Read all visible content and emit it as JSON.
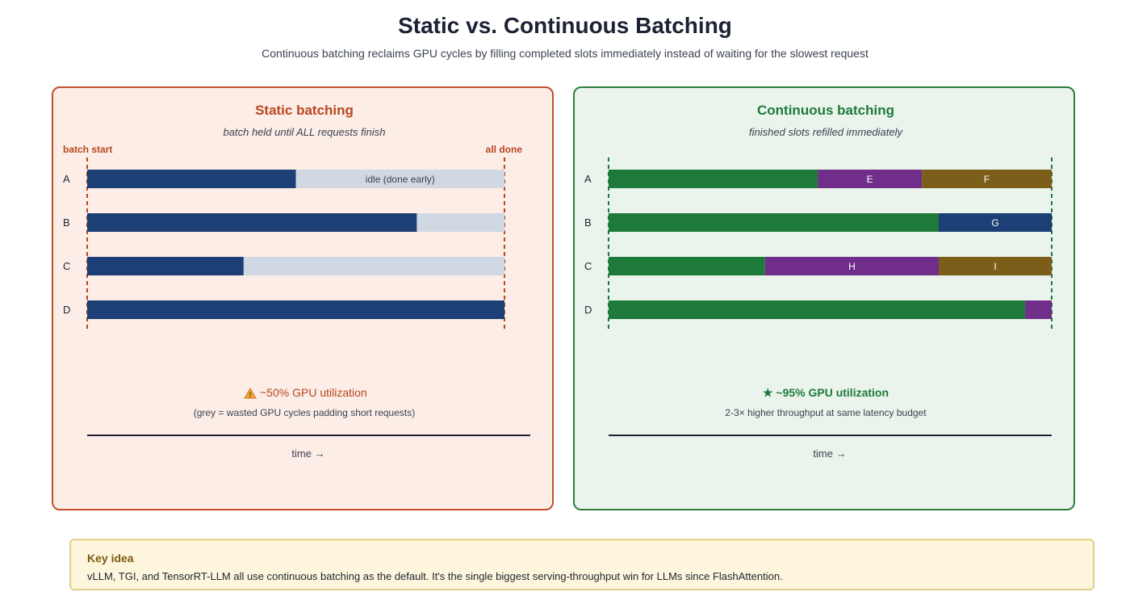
{
  "title": "Static vs. Continuous Batching",
  "subtitle": "Continuous batching reclaims GPU cycles by filling completed slots immediately instead of waiting for the slowest request",
  "colors": {
    "static_accent": "#c0502a",
    "continuous_accent": "#1e7a3a",
    "request_blue": "#1c3f75",
    "idle_grey": "#d0d8e4",
    "request_green": "#1e7a3a",
    "request_purple": "#702d8a",
    "request_brown": "#7a5e1a"
  },
  "static": {
    "heading": "Static batching",
    "caption": "batch held until ALL requests finish",
    "marker_start": "batch start",
    "marker_end": "all done",
    "rows": [
      {
        "label": "A",
        "segments": [
          {
            "start": 0,
            "end": 0.5,
            "kind": "active",
            "text": ""
          },
          {
            "start": 0.5,
            "end": 1,
            "kind": "idle",
            "text": "idle (done early)"
          }
        ]
      },
      {
        "label": "B",
        "segments": [
          {
            "start": 0,
            "end": 0.79,
            "kind": "active",
            "text": ""
          },
          {
            "start": 0.79,
            "end": 1,
            "kind": "idle",
            "text": ""
          }
        ]
      },
      {
        "label": "C",
        "segments": [
          {
            "start": 0,
            "end": 0.375,
            "kind": "active",
            "text": ""
          },
          {
            "start": 0.375,
            "end": 1,
            "kind": "idle",
            "text": ""
          }
        ]
      },
      {
        "label": "D",
        "segments": [
          {
            "start": 0,
            "end": 1,
            "kind": "active",
            "text": ""
          }
        ]
      }
    ],
    "warning_icon": "warning-icon",
    "utilization": "~50% GPU utilization",
    "note": "(grey = wasted GPU cycles padding short requests)",
    "axis_label": "time →"
  },
  "continuous": {
    "heading": "Continuous batching",
    "caption": "finished slots refilled immediately",
    "rows": [
      {
        "label": "A",
        "segments": [
          {
            "start": 0,
            "end": 0.472,
            "kind": "green",
            "text": ""
          },
          {
            "start": 0.472,
            "end": 0.707,
            "kind": "purple",
            "text": "E"
          },
          {
            "start": 0.707,
            "end": 1,
            "kind": "brown",
            "text": "F"
          }
        ]
      },
      {
        "label": "B",
        "segments": [
          {
            "start": 0,
            "end": 0.745,
            "kind": "green",
            "text": ""
          },
          {
            "start": 0.745,
            "end": 1,
            "kind": "blue",
            "text": "G"
          }
        ]
      },
      {
        "label": "C",
        "segments": [
          {
            "start": 0,
            "end": 0.353,
            "kind": "green",
            "text": ""
          },
          {
            "start": 0.353,
            "end": 0.745,
            "kind": "purple",
            "text": "H"
          },
          {
            "start": 0.745,
            "end": 1,
            "kind": "brown",
            "text": "I"
          }
        ]
      },
      {
        "label": "D",
        "segments": [
          {
            "start": 0,
            "end": 0.94,
            "kind": "green",
            "text": ""
          },
          {
            "start": 0.94,
            "end": 1,
            "kind": "purple",
            "text": ""
          }
        ]
      }
    ],
    "star_icon": "star-icon",
    "utilization": "★ ~95% GPU utilization",
    "note": "2-3× higher throughput at same latency budget",
    "axis_label": "time →"
  },
  "key_idea": {
    "title": "Key idea",
    "text": "vLLM, TGI, and TensorRT-LLM all use continuous batching as the default. It's the single biggest serving-throughput win for LLMs since FlashAttention."
  }
}
